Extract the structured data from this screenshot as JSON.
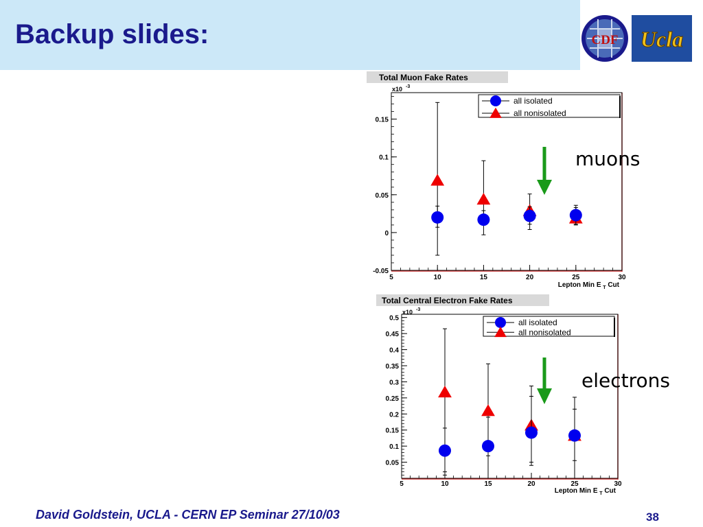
{
  "slide": {
    "title": "Backup slides:",
    "footer": "David Goldstein, UCLA - CERN EP Seminar 27/10/03",
    "page_number": "38"
  },
  "logos": {
    "left": "CDF",
    "right": "Ucla"
  },
  "annotations": {
    "muons": "muons",
    "electrons": "electrons"
  },
  "colors": {
    "header_bg": "#cce8f8",
    "title": "#1a1a8c",
    "isolated": "#0000ee",
    "nonisolated": "#ee0000",
    "arrow": "#1a9a1a"
  },
  "chart_data": [
    {
      "id": "muon",
      "type": "scatter",
      "title": "Total Muon Fake Rates",
      "multiplier": "x10",
      "multiplier_exp": "-3",
      "xlabel": "Lepton Min E",
      "xlabel_sub": "T",
      "xlabel_suffix": "Cut",
      "xlim": [
        5,
        30
      ],
      "ylim": [
        -0.05,
        0.185
      ],
      "xticks": [
        5,
        10,
        15,
        20,
        25,
        30
      ],
      "yticks": [
        -0.05,
        0,
        0.05,
        0.1,
        0.15
      ],
      "ytick_labels": [
        "-0.05",
        "0",
        "0.05",
        "0.1",
        "0.15"
      ],
      "legend_position": "top-right",
      "series": [
        {
          "name": "all isolated",
          "marker": "circle",
          "x": [
            10,
            15,
            20,
            25
          ],
          "y": [
            0.02,
            0.017,
            0.022,
            0.023
          ],
          "err_low": [
            0.05,
            0.02,
            0.018,
            0.012
          ],
          "err_high": [
            0.015,
            0.012,
            0.012,
            0.01
          ]
        },
        {
          "name": "all nonisolated",
          "marker": "triangle",
          "x": [
            10,
            15,
            20,
            25
          ],
          "y": [
            0.069,
            0.044,
            0.029,
            0.019
          ],
          "err_low": [
            0.062,
            0.027,
            0.018,
            0.009
          ],
          "err_high": [
            0.103,
            0.051,
            0.022,
            0.017
          ]
        }
      ]
    },
    {
      "id": "electron",
      "type": "scatter",
      "title": "Total Central Electron Fake Rates",
      "multiplier": "x10",
      "multiplier_exp": "-3",
      "xlabel": "Lepton Min E",
      "xlabel_sub": "T",
      "xlabel_suffix": "Cut",
      "xlim": [
        5,
        30
      ],
      "ylim": [
        0,
        0.51
      ],
      "xticks": [
        5,
        10,
        15,
        20,
        25,
        30
      ],
      "yticks": [
        0.05,
        0.1,
        0.15,
        0.2,
        0.25,
        0.3,
        0.35,
        0.4,
        0.45,
        0.5
      ],
      "ytick_labels": [
        "0.05",
        "0.1",
        "0.15",
        "0.2",
        "0.25",
        "0.3",
        "0.35",
        "0.4",
        "0.45",
        "0.5"
      ],
      "legend_position": "top-right",
      "series": [
        {
          "name": "all isolated",
          "marker": "circle",
          "x": [
            10,
            15,
            20,
            25
          ],
          "y": [
            0.086,
            0.1,
            0.142,
            0.133
          ],
          "err_low": [
            0.066,
            0.03,
            0.092,
            0.078
          ],
          "err_high": [
            0.07,
            0.09,
            0.113,
            0.082
          ]
        },
        {
          "name": "all nonisolated",
          "marker": "triangle",
          "x": [
            10,
            15,
            20,
            25
          ],
          "y": [
            0.268,
            0.21,
            0.165,
            0.133
          ],
          "err_low": [
            0.258,
            0.21,
            0.125,
            0.133
          ],
          "err_high": [
            0.197,
            0.146,
            0.122,
            0.119
          ]
        }
      ]
    }
  ]
}
